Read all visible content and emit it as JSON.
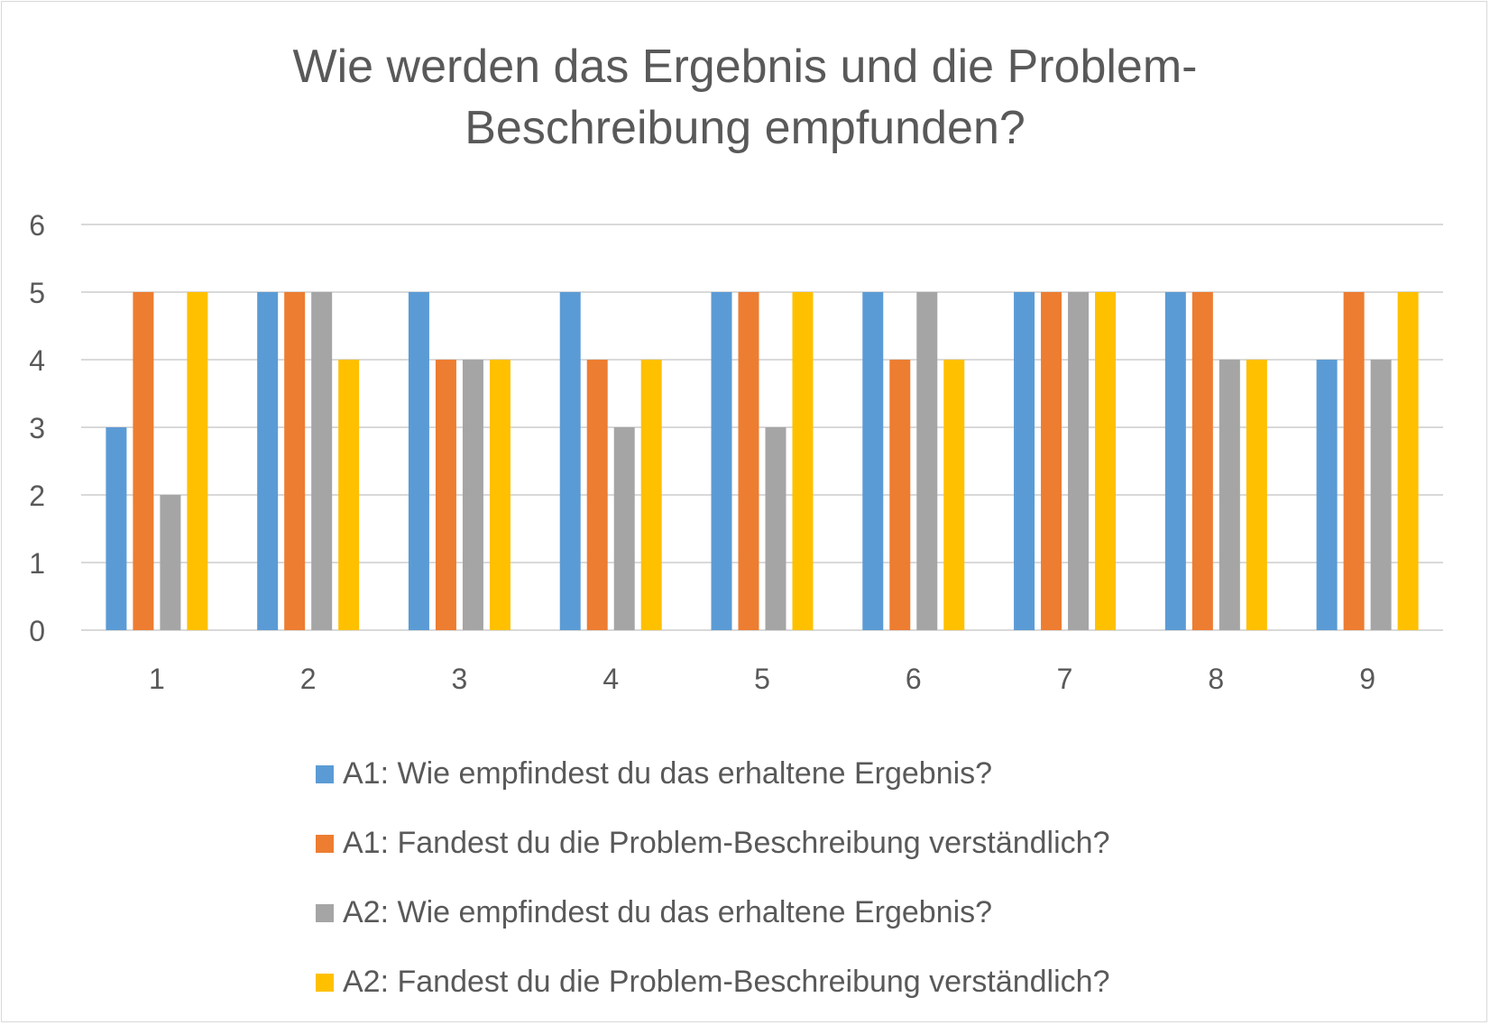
{
  "chart_data": {
    "type": "bar",
    "title": "Wie werden das Ergebnis und die Problem-Beschreibung empfunden?",
    "title_lines": [
      "Wie werden das Ergebnis und die Problem-",
      "Beschreibung empfunden?"
    ],
    "xlabel": "",
    "ylabel": "",
    "categories": [
      "1",
      "2",
      "3",
      "4",
      "5",
      "6",
      "7",
      "8",
      "9"
    ],
    "ylim": [
      0,
      6
    ],
    "yticks": [
      "0",
      "1",
      "2",
      "3",
      "4",
      "5",
      "6"
    ],
    "grid": true,
    "legend_position": "bottom",
    "series": [
      {
        "name": "A1: Wie empfindest du das erhaltene Ergebnis?",
        "color": "#5B9BD5",
        "values": [
          3,
          5,
          5,
          5,
          5,
          5,
          5,
          5,
          4
        ]
      },
      {
        "name": "A1: Fandest du die Problem-Beschreibung verständlich?",
        "color": "#ED7D31",
        "values": [
          5,
          5,
          4,
          4,
          5,
          4,
          5,
          5,
          5
        ]
      },
      {
        "name": "A2: Wie empfindest du das erhaltene Ergebnis?",
        "color": "#A5A5A5",
        "values": [
          2,
          5,
          4,
          3,
          3,
          5,
          5,
          4,
          4
        ]
      },
      {
        "name": "A2: Fandest du die Problem-Beschreibung verständlich?",
        "color": "#FFC000",
        "values": [
          5,
          4,
          4,
          4,
          5,
          4,
          5,
          4,
          5
        ]
      }
    ]
  }
}
